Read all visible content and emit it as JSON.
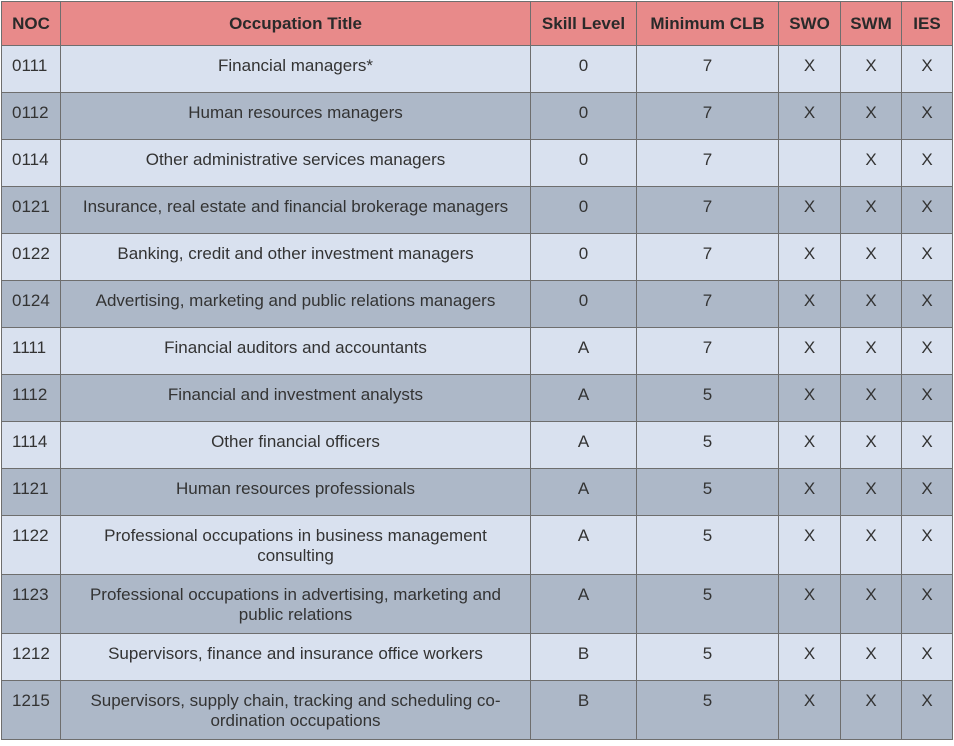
{
  "table": {
    "headers": {
      "noc": "NOC",
      "title": "Occupation Title",
      "skill": "Skill Level",
      "clb": "Minimum CLB",
      "swo": "SWO",
      "swm": "SWM",
      "ies": "IES"
    },
    "rows": [
      {
        "noc": "0111",
        "title": "Financial managers*",
        "skill": "0",
        "clb": "7",
        "swo": "X",
        "swm": "X",
        "ies": "X"
      },
      {
        "noc": "0112",
        "title": "Human resources managers",
        "skill": "0",
        "clb": "7",
        "swo": "X",
        "swm": "X",
        "ies": "X"
      },
      {
        "noc": "0114",
        "title": "Other administrative services managers",
        "skill": "0",
        "clb": "7",
        "swo": "",
        "swm": "X",
        "ies": "X"
      },
      {
        "noc": "0121",
        "title": "Insurance, real estate and financial brokerage managers",
        "skill": "0",
        "clb": "7",
        "swo": "X",
        "swm": "X",
        "ies": "X"
      },
      {
        "noc": "0122",
        "title": "Banking, credit and other investment managers",
        "skill": "0",
        "clb": "7",
        "swo": "X",
        "swm": "X",
        "ies": "X"
      },
      {
        "noc": "0124",
        "title": "Advertising, marketing and public relations managers",
        "skill": "0",
        "clb": "7",
        "swo": "X",
        "swm": "X",
        "ies": "X"
      },
      {
        "noc": "1111",
        "title": "Financial auditors and accountants",
        "skill": "A",
        "clb": "7",
        "swo": "X",
        "swm": "X",
        "ies": "X"
      },
      {
        "noc": "1112",
        "title": "Financial and investment analysts",
        "skill": "A",
        "clb": "5",
        "swo": "X",
        "swm": "X",
        "ies": "X"
      },
      {
        "noc": "1114",
        "title": "Other financial officers",
        "skill": "A",
        "clb": "5",
        "swo": "X",
        "swm": "X",
        "ies": "X"
      },
      {
        "noc": "1121",
        "title": "Human resources professionals",
        "skill": "A",
        "clb": "5",
        "swo": "X",
        "swm": "X",
        "ies": "X"
      },
      {
        "noc": "1122",
        "title": "Professional occupations in business management consulting",
        "skill": "A",
        "clb": "5",
        "swo": "X",
        "swm": "X",
        "ies": "X"
      },
      {
        "noc": "1123",
        "title": "Professional occupations in advertising, marketing and public relations",
        "skill": "A",
        "clb": "5",
        "swo": "X",
        "swm": "X",
        "ies": "X"
      },
      {
        "noc": "1212",
        "title": "Supervisors, finance and insurance office workers",
        "skill": "B",
        "clb": "5",
        "swo": "X",
        "swm": "X",
        "ies": "X"
      },
      {
        "noc": "1215",
        "title": "Supervisors, supply chain, tracking and scheduling co-ordination occupations",
        "skill": "B",
        "clb": "5",
        "swo": "X",
        "swm": "X",
        "ies": "X"
      }
    ]
  },
  "colors": {
    "header_bg": "#e88a8a",
    "row_light": "#d9e1ef",
    "row_dark": "#adb8c8"
  }
}
